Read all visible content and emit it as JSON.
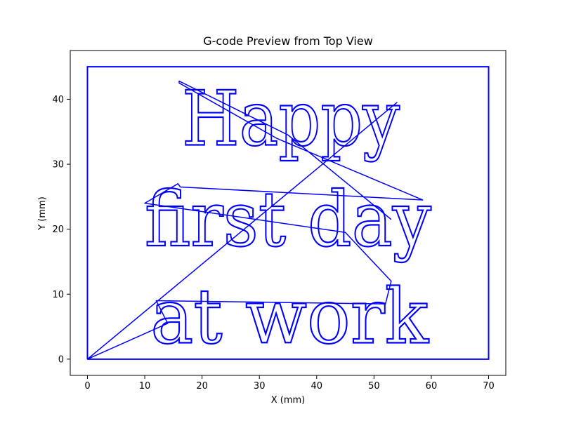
{
  "chart_data": {
    "type": "line",
    "title": "G-code Preview from Top View",
    "xlabel": "X (mm)",
    "ylabel": "Y (mm)",
    "xlim": [
      -3,
      73
    ],
    "ylim": [
      -2.5,
      47.5
    ],
    "xticks": [
      0,
      10,
      20,
      30,
      40,
      50,
      60,
      70
    ],
    "yticks": [
      0,
      10,
      20,
      30,
      40
    ],
    "grid": false,
    "series_color": "#0000ff",
    "border": {
      "x": [
        0,
        70,
        70,
        0,
        0
      ],
      "y": [
        0,
        0,
        45,
        45,
        0
      ]
    },
    "text_lines": [
      {
        "text": "Happy",
        "x_left": 16.5,
        "x_right": 54.5,
        "baseline_y": 33
      },
      {
        "text": "first day",
        "x_left": 10,
        "x_right": 60,
        "baseline_y": 17.5
      },
      {
        "text": "at work",
        "x_left": 11,
        "x_right": 59.5,
        "baseline_y": 2.5
      }
    ],
    "travel_moves": {
      "x": [
        0,
        54,
        0,
        14,
        12,
        52,
        53,
        45,
        10,
        15.8,
        16.2,
        58.5,
        33,
        16,
        16,
        35,
        53
      ],
      "y": [
        0,
        39.5,
        0,
        5.5,
        9,
        8.5,
        12,
        19.5,
        24,
        27,
        26.5,
        24.5,
        34,
        42.5,
        42.8,
        34.5,
        21.5
      ]
    }
  }
}
